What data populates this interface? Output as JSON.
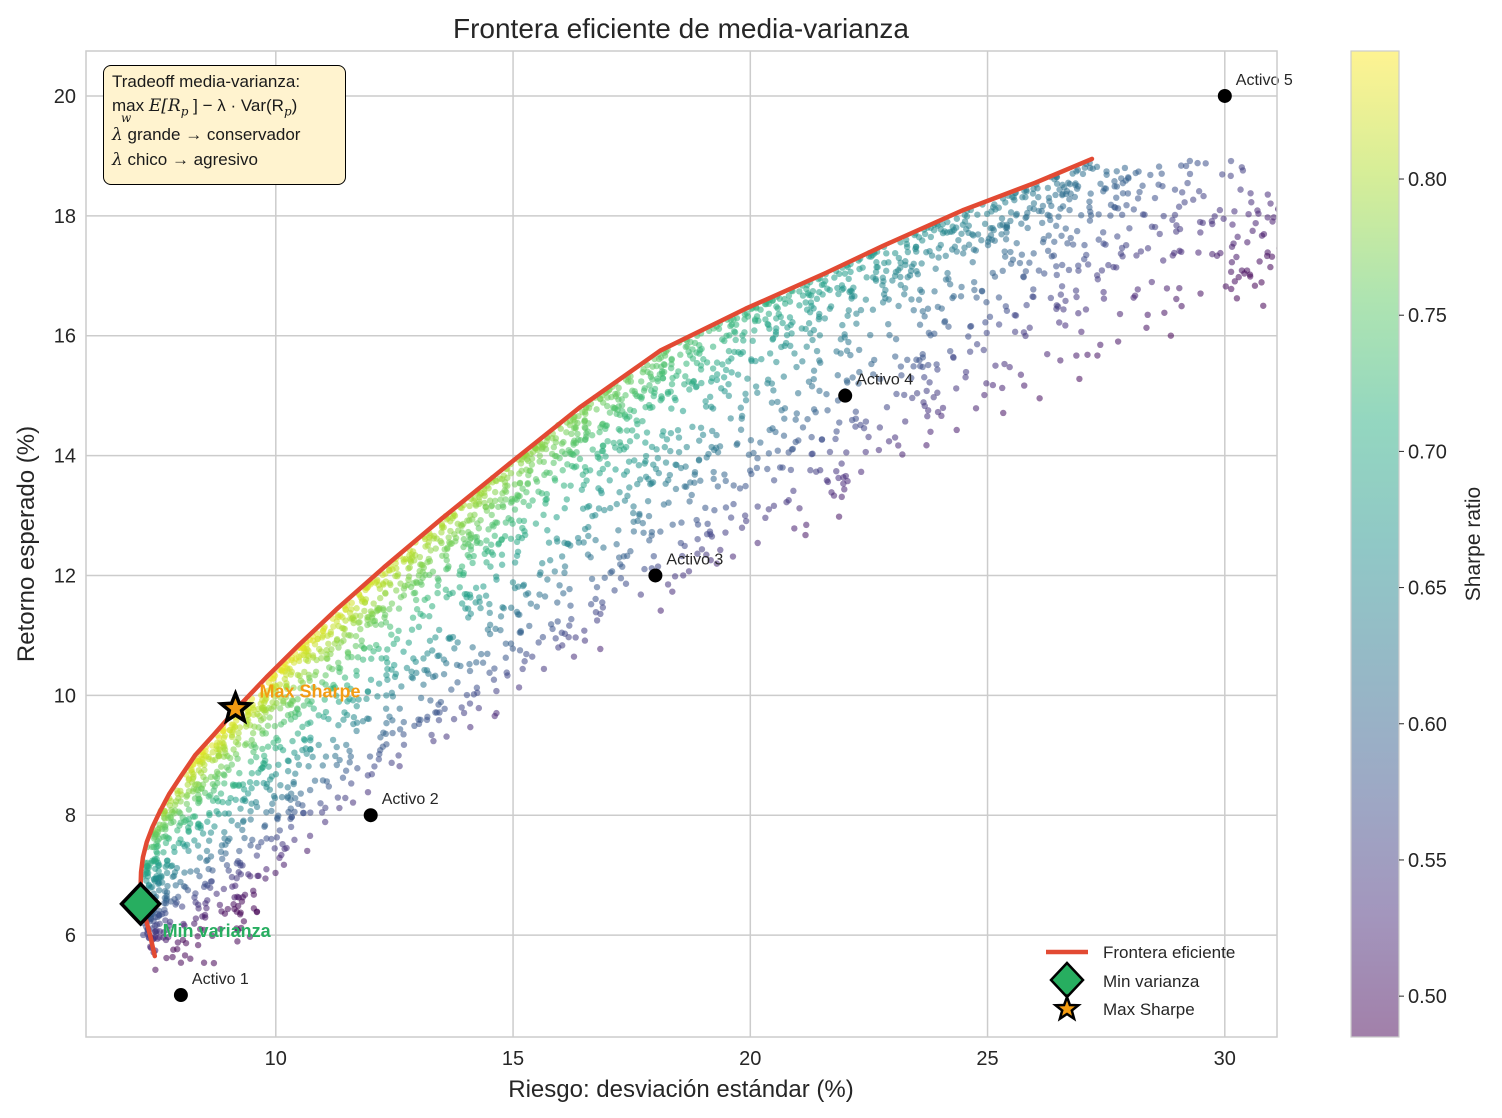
{
  "chart_data": {
    "type": "scatter",
    "title": "Frontera eficiente de media-varianza",
    "xlabel": "Riesgo: desviación estándar (%)",
    "ylabel": "Retorno esperado (%)",
    "xlim": [
      6.0,
      31.1
    ],
    "ylim": [
      4.3,
      20.75
    ],
    "xticks": [
      10,
      15,
      20,
      25,
      30
    ],
    "yticks": [
      6,
      8,
      10,
      12,
      14,
      16,
      18,
      20
    ],
    "grid": true,
    "assets": [
      {
        "name": "Activo 1",
        "x": 8.0,
        "y": 5.0
      },
      {
        "name": "Activo 2",
        "x": 12.0,
        "y": 8.0
      },
      {
        "name": "Activo 3",
        "x": 18.0,
        "y": 12.0
      },
      {
        "name": "Activo 4",
        "x": 22.0,
        "y": 15.0
      },
      {
        "name": "Activo 5",
        "x": 30.0,
        "y": 20.0
      }
    ],
    "frontier": {
      "name": "Frontera eficiente",
      "color": "#e24a33",
      "x": [
        7.45,
        7.35,
        7.25,
        7.18,
        7.15,
        7.16,
        7.2,
        7.28,
        7.4,
        7.55,
        7.75,
        8.0,
        8.3,
        8.7,
        9.2,
        9.8,
        10.5,
        11.3,
        12.3,
        13.5,
        14.9,
        16.4,
        18.1,
        19.9,
        21.6,
        22.8,
        24.5,
        26.0,
        27.2
      ],
      "y": [
        5.65,
        6.0,
        6.3,
        6.55,
        6.8,
        7.05,
        7.3,
        7.55,
        7.8,
        8.05,
        8.35,
        8.65,
        9.0,
        9.35,
        9.8,
        10.3,
        10.85,
        11.45,
        12.15,
        12.95,
        13.85,
        14.8,
        15.75,
        16.45,
        17.05,
        17.5,
        18.1,
        18.55,
        18.95
      ]
    },
    "min_variance": {
      "label": "Min varianza",
      "x": 7.15,
      "y": 6.52,
      "color": "#27ae60"
    },
    "max_sharpe": {
      "label": "Max Sharpe",
      "x": 9.15,
      "y": 9.78,
      "color": "#f39c12"
    },
    "simulated_portfolios": {
      "count": 3000,
      "x_range": [
        7.1,
        27.2
      ],
      "y_range": [
        5.65,
        19.0
      ],
      "sharpe_range": [
        0.5,
        0.84
      ],
      "alpha": 0.55
    },
    "colorbar": {
      "label": "Sharpe ratio",
      "ticks": [
        0.5,
        0.55,
        0.6,
        0.65,
        0.7,
        0.75,
        0.8
      ],
      "min": 0.485,
      "max": 0.847,
      "colormap": "viridis"
    },
    "legend": {
      "placement": "lower-right",
      "entries": [
        "Frontera eficiente",
        "Min varianza",
        "Max Sharpe"
      ]
    },
    "annotation": {
      "title": "Tradeoff media-varianza:",
      "formula_max": "max",
      "formula_sub": "w",
      "formula_body": "E[R",
      "formula_body_sub": "p",
      "formula_mid": "] − λ · Var(R",
      "formula_mid_sub": "p",
      "formula_end": ")",
      "lambda_symbol": "λ",
      "arrow": "→",
      "line_big_left": "grande",
      "line_big_right": "conservador",
      "line_small_left": "chico",
      "line_small_right": "agresivo",
      "background": "#fff3cf"
    }
  }
}
